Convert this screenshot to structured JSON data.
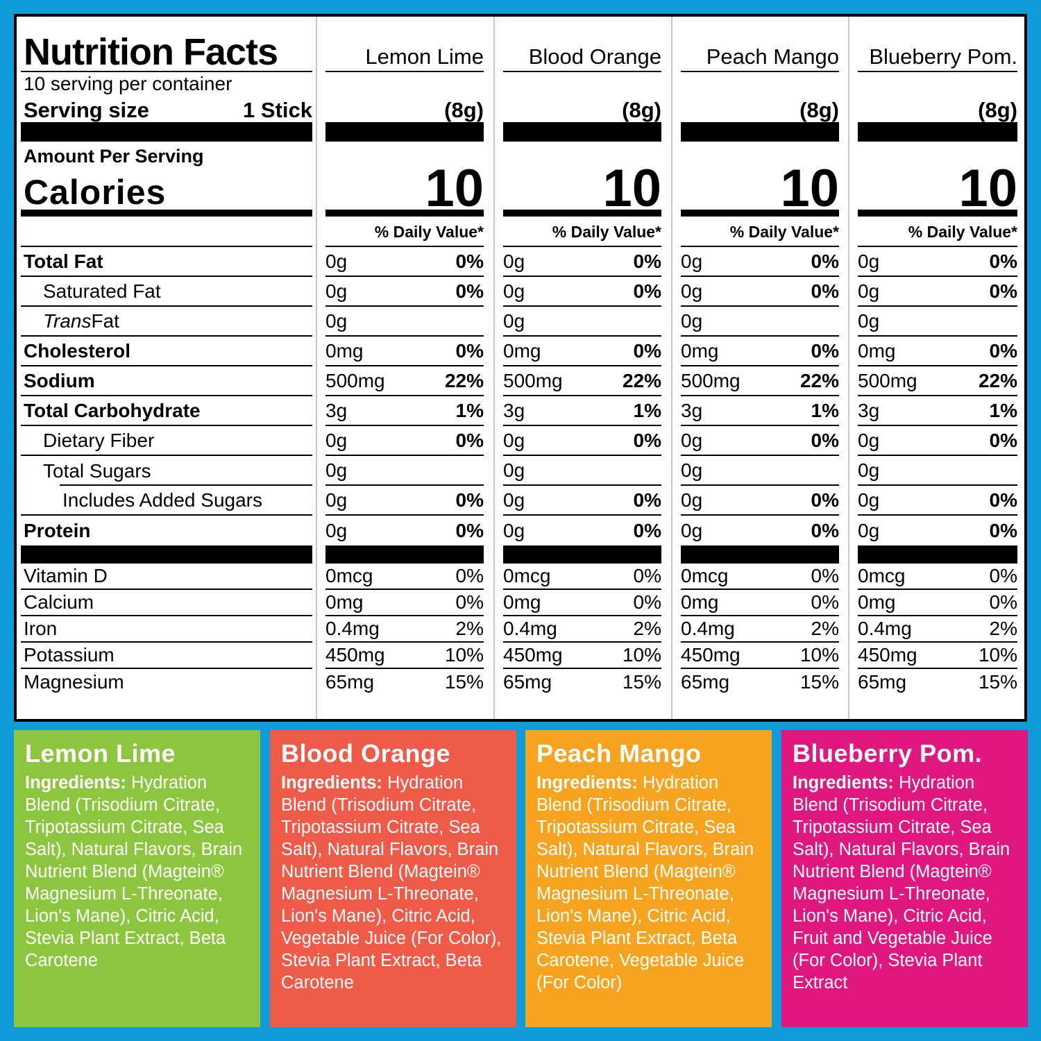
{
  "colors": {
    "background": "#0E9BD8",
    "panel_border": "#000000",
    "column_divider": "#c9c9c9"
  },
  "panel": {
    "title": "Nutrition Facts",
    "servings_per_container": "10 serving per container",
    "serving_size_label": "Serving size",
    "serving_size_value": "1 Stick",
    "amount_per_serving": "Amount Per Serving",
    "calories_label": "Calories",
    "daily_value_header": "% Daily Value*",
    "columns": [
      {
        "name": "Lemon Lime",
        "size": "(8g)",
        "calories": "10"
      },
      {
        "name": "Blood Orange",
        "size": "(8g)",
        "calories": "10"
      },
      {
        "name": "Peach Mango",
        "size": "(8g)",
        "calories": "10"
      },
      {
        "name": "Blueberry Pom.",
        "size": "(8g)",
        "calories": "10"
      }
    ],
    "rows": [
      {
        "label": "Total Fat",
        "bold": true,
        "indent": 0,
        "amounts": [
          "0g",
          "0g",
          "0g",
          "0g"
        ],
        "dvs": [
          "0%",
          "0%",
          "0%",
          "0%"
        ]
      },
      {
        "label": "Saturated Fat",
        "bold": false,
        "indent": 1,
        "amounts": [
          "0g",
          "0g",
          "0g",
          "0g"
        ],
        "dvs": [
          "0%",
          "0%",
          "0%",
          "0%"
        ]
      },
      {
        "label": "Trans Fat",
        "italic_prefix": "Trans",
        "bold": false,
        "indent": 1,
        "amounts": [
          "0g",
          "0g",
          "0g",
          "0g"
        ],
        "dvs": [
          "",
          "",
          "",
          ""
        ]
      },
      {
        "label": "Cholesterol",
        "bold": true,
        "indent": 0,
        "amounts": [
          "0mg",
          "0mg",
          "0mg",
          "0mg"
        ],
        "dvs": [
          "0%",
          "0%",
          "0%",
          "0%"
        ]
      },
      {
        "label": "Sodium",
        "bold": true,
        "indent": 0,
        "amounts": [
          "500mg",
          "500mg",
          "500mg",
          "500mg"
        ],
        "dvs": [
          "22%",
          "22%",
          "22%",
          "22%"
        ]
      },
      {
        "label": "Total Carbohydrate",
        "bold": true,
        "indent": 0,
        "amounts": [
          "3g",
          "3g",
          "3g",
          "3g"
        ],
        "dvs": [
          "1%",
          "1%",
          "1%",
          "1%"
        ]
      },
      {
        "label": "Dietary Fiber",
        "bold": false,
        "indent": 1,
        "amounts": [
          "0g",
          "0g",
          "0g",
          "0g"
        ],
        "dvs": [
          "0%",
          "0%",
          "0%",
          "0%"
        ]
      },
      {
        "label": "Total Sugars",
        "bold": false,
        "indent": 1,
        "indent_line": true,
        "amounts": [
          "0g",
          "0g",
          "0g",
          "0g"
        ],
        "dvs": [
          "",
          "",
          "",
          ""
        ]
      },
      {
        "label": "Includes Added Sugars",
        "bold": false,
        "indent": 2,
        "amounts": [
          "0g",
          "0g",
          "0g",
          "0g"
        ],
        "dvs": [
          "0%",
          "0%",
          "0%",
          "0%"
        ]
      },
      {
        "label": "Protein",
        "bold": true,
        "indent": 0,
        "no_line": true,
        "bar_after": true,
        "amounts": [
          "0g",
          "0g",
          "0g",
          "0g"
        ],
        "dvs": [
          "0%",
          "0%",
          "0%",
          "0%"
        ]
      },
      {
        "label": "Vitamin D",
        "vitamin": true,
        "indent": 0,
        "amounts": [
          "0mcg",
          "0mcg",
          "0mcg",
          "0mcg"
        ],
        "dvs": [
          "0%",
          "0%",
          "0%",
          "0%"
        ]
      },
      {
        "label": "Calcium",
        "vitamin": true,
        "indent": 0,
        "amounts": [
          "0mg",
          "0mg",
          "0mg",
          "0mg"
        ],
        "dvs": [
          "0%",
          "0%",
          "0%",
          "0%"
        ]
      },
      {
        "label": "Iron",
        "vitamin": true,
        "indent": 0,
        "amounts": [
          "0.4mg",
          "0.4mg",
          "0.4mg",
          "0.4mg"
        ],
        "dvs": [
          "2%",
          "2%",
          "2%",
          "2%"
        ]
      },
      {
        "label": "Potassium",
        "vitamin": true,
        "indent": 0,
        "amounts": [
          "450mg",
          "450mg",
          "450mg",
          "450mg"
        ],
        "dvs": [
          "10%",
          "10%",
          "10%",
          "10%"
        ]
      },
      {
        "label": "Magnesium",
        "vitamin": true,
        "indent": 0,
        "no_line": true,
        "amounts": [
          "65mg",
          "65mg",
          "65mg",
          "65mg"
        ],
        "dvs": [
          "15%",
          "15%",
          "15%",
          "15%"
        ]
      }
    ]
  },
  "flavors": [
    {
      "name": "Lemon Lime",
      "color": "#8CC63F",
      "ingredients_label": "Ingredients:",
      "ingredients": "Hydration Blend (Trisodium Citrate, Tripotassium Citrate, Sea Salt), Natural Flavors, Brain Nutrient Blend (Magtein® Magnesium L-Threonate, Lion's Mane), Citric Acid, Stevia Plant Extract, Beta Carotene"
    },
    {
      "name": "Blood Orange",
      "color": "#EF5A49",
      "ingredients_label": "Ingredients:",
      "ingredients": "Hydration Blend (Trisodium Citrate, Tripotassium Citrate, Sea Salt), Natural Flavors, Brain Nutrient Blend (Magtein® Magnesium L-Threonate, Lion's Mane), Citric Acid, Vegetable Juice (For Color), Stevia Plant Extract, Beta Carotene"
    },
    {
      "name": "Peach Mango",
      "color": "#F6A41F",
      "ingredients_label": "Ingredients:",
      "ingredients": "Hydration Blend (Trisodium Citrate, Tripotassium Citrate, Sea Salt), Natural Flavors, Brain Nutrient Blend (Magtein® Magnesium L-Threonate, Lion's Mane), Citric Acid, Stevia Plant Extract, Beta Carotene, Vegetable Juice (For Color)"
    },
    {
      "name": "Blueberry Pom.",
      "color": "#E0177E",
      "ingredients_label": "Ingredients:",
      "ingredients": "Hydration Blend (Trisodium Citrate, Tripotassium Citrate, Sea Salt), Natural Flavors, Brain Nutrient Blend (Magtein® Magnesium L-Threonate, Lion's Mane), Citric Acid, Fruit and Vegetable Juice (For Color), Stevia Plant Extract"
    }
  ]
}
